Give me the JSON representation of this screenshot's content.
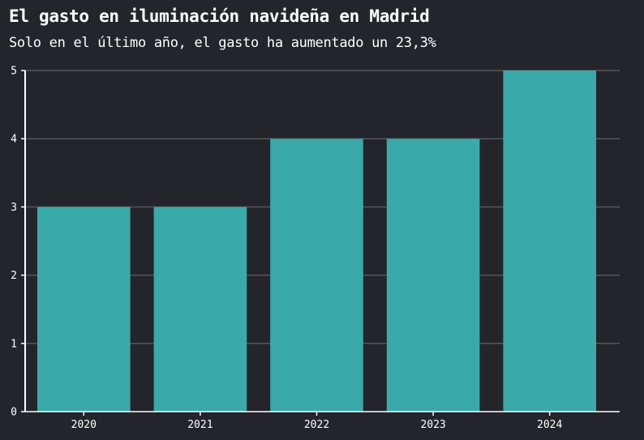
{
  "title": "El gasto en iluminación navideña en Madrid",
  "subtitle": "Solo en el último año, el gasto ha aumentado un 23,3%",
  "chart_data": {
    "type": "bar",
    "categories": [
      "2020",
      "2021",
      "2022",
      "2023",
      "2024"
    ],
    "values": [
      3,
      3,
      4,
      4,
      5
    ],
    "ylim": [
      0,
      5
    ],
    "yticks": [
      0,
      1,
      2,
      3,
      4,
      5
    ],
    "grid": true,
    "colors": {
      "bar": "#3aa9aa",
      "background": "#24252a",
      "grid": "#55565b",
      "axis": "#ffffff"
    }
  }
}
